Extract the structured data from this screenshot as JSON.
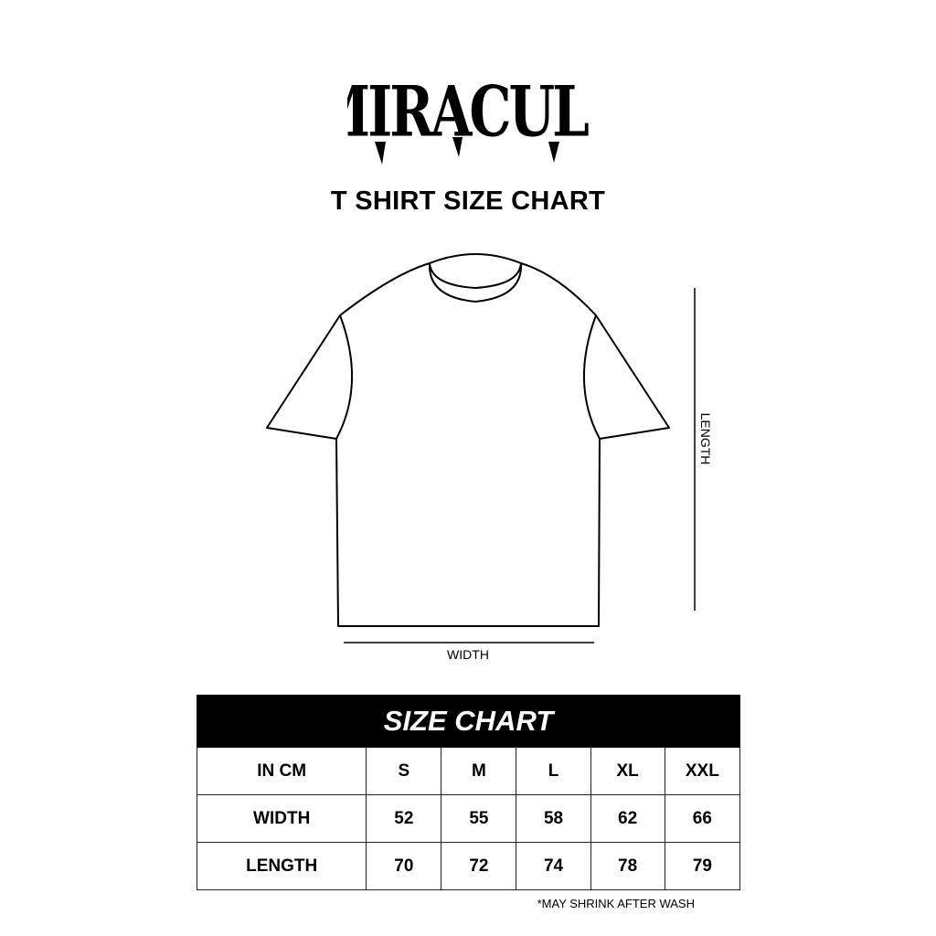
{
  "logo": {
    "text": "MIRACULE"
  },
  "title": "T SHIRT SIZE CHART",
  "diagram": {
    "width_label": "WIDTH",
    "length_label": "LENGTH"
  },
  "table": {
    "title": "SIZE CHART",
    "columns": [
      "IN CM",
      "S",
      "M",
      "L",
      "XL",
      "XXL"
    ],
    "rows": [
      {
        "label": "WIDTH",
        "values": [
          "52",
          "55",
          "58",
          "62",
          "66"
        ]
      },
      {
        "label": "LENGTH",
        "values": [
          "70",
          "72",
          "74",
          "78",
          "79"
        ]
      }
    ]
  },
  "note": "*MAY SHRINK AFTER WASH"
}
